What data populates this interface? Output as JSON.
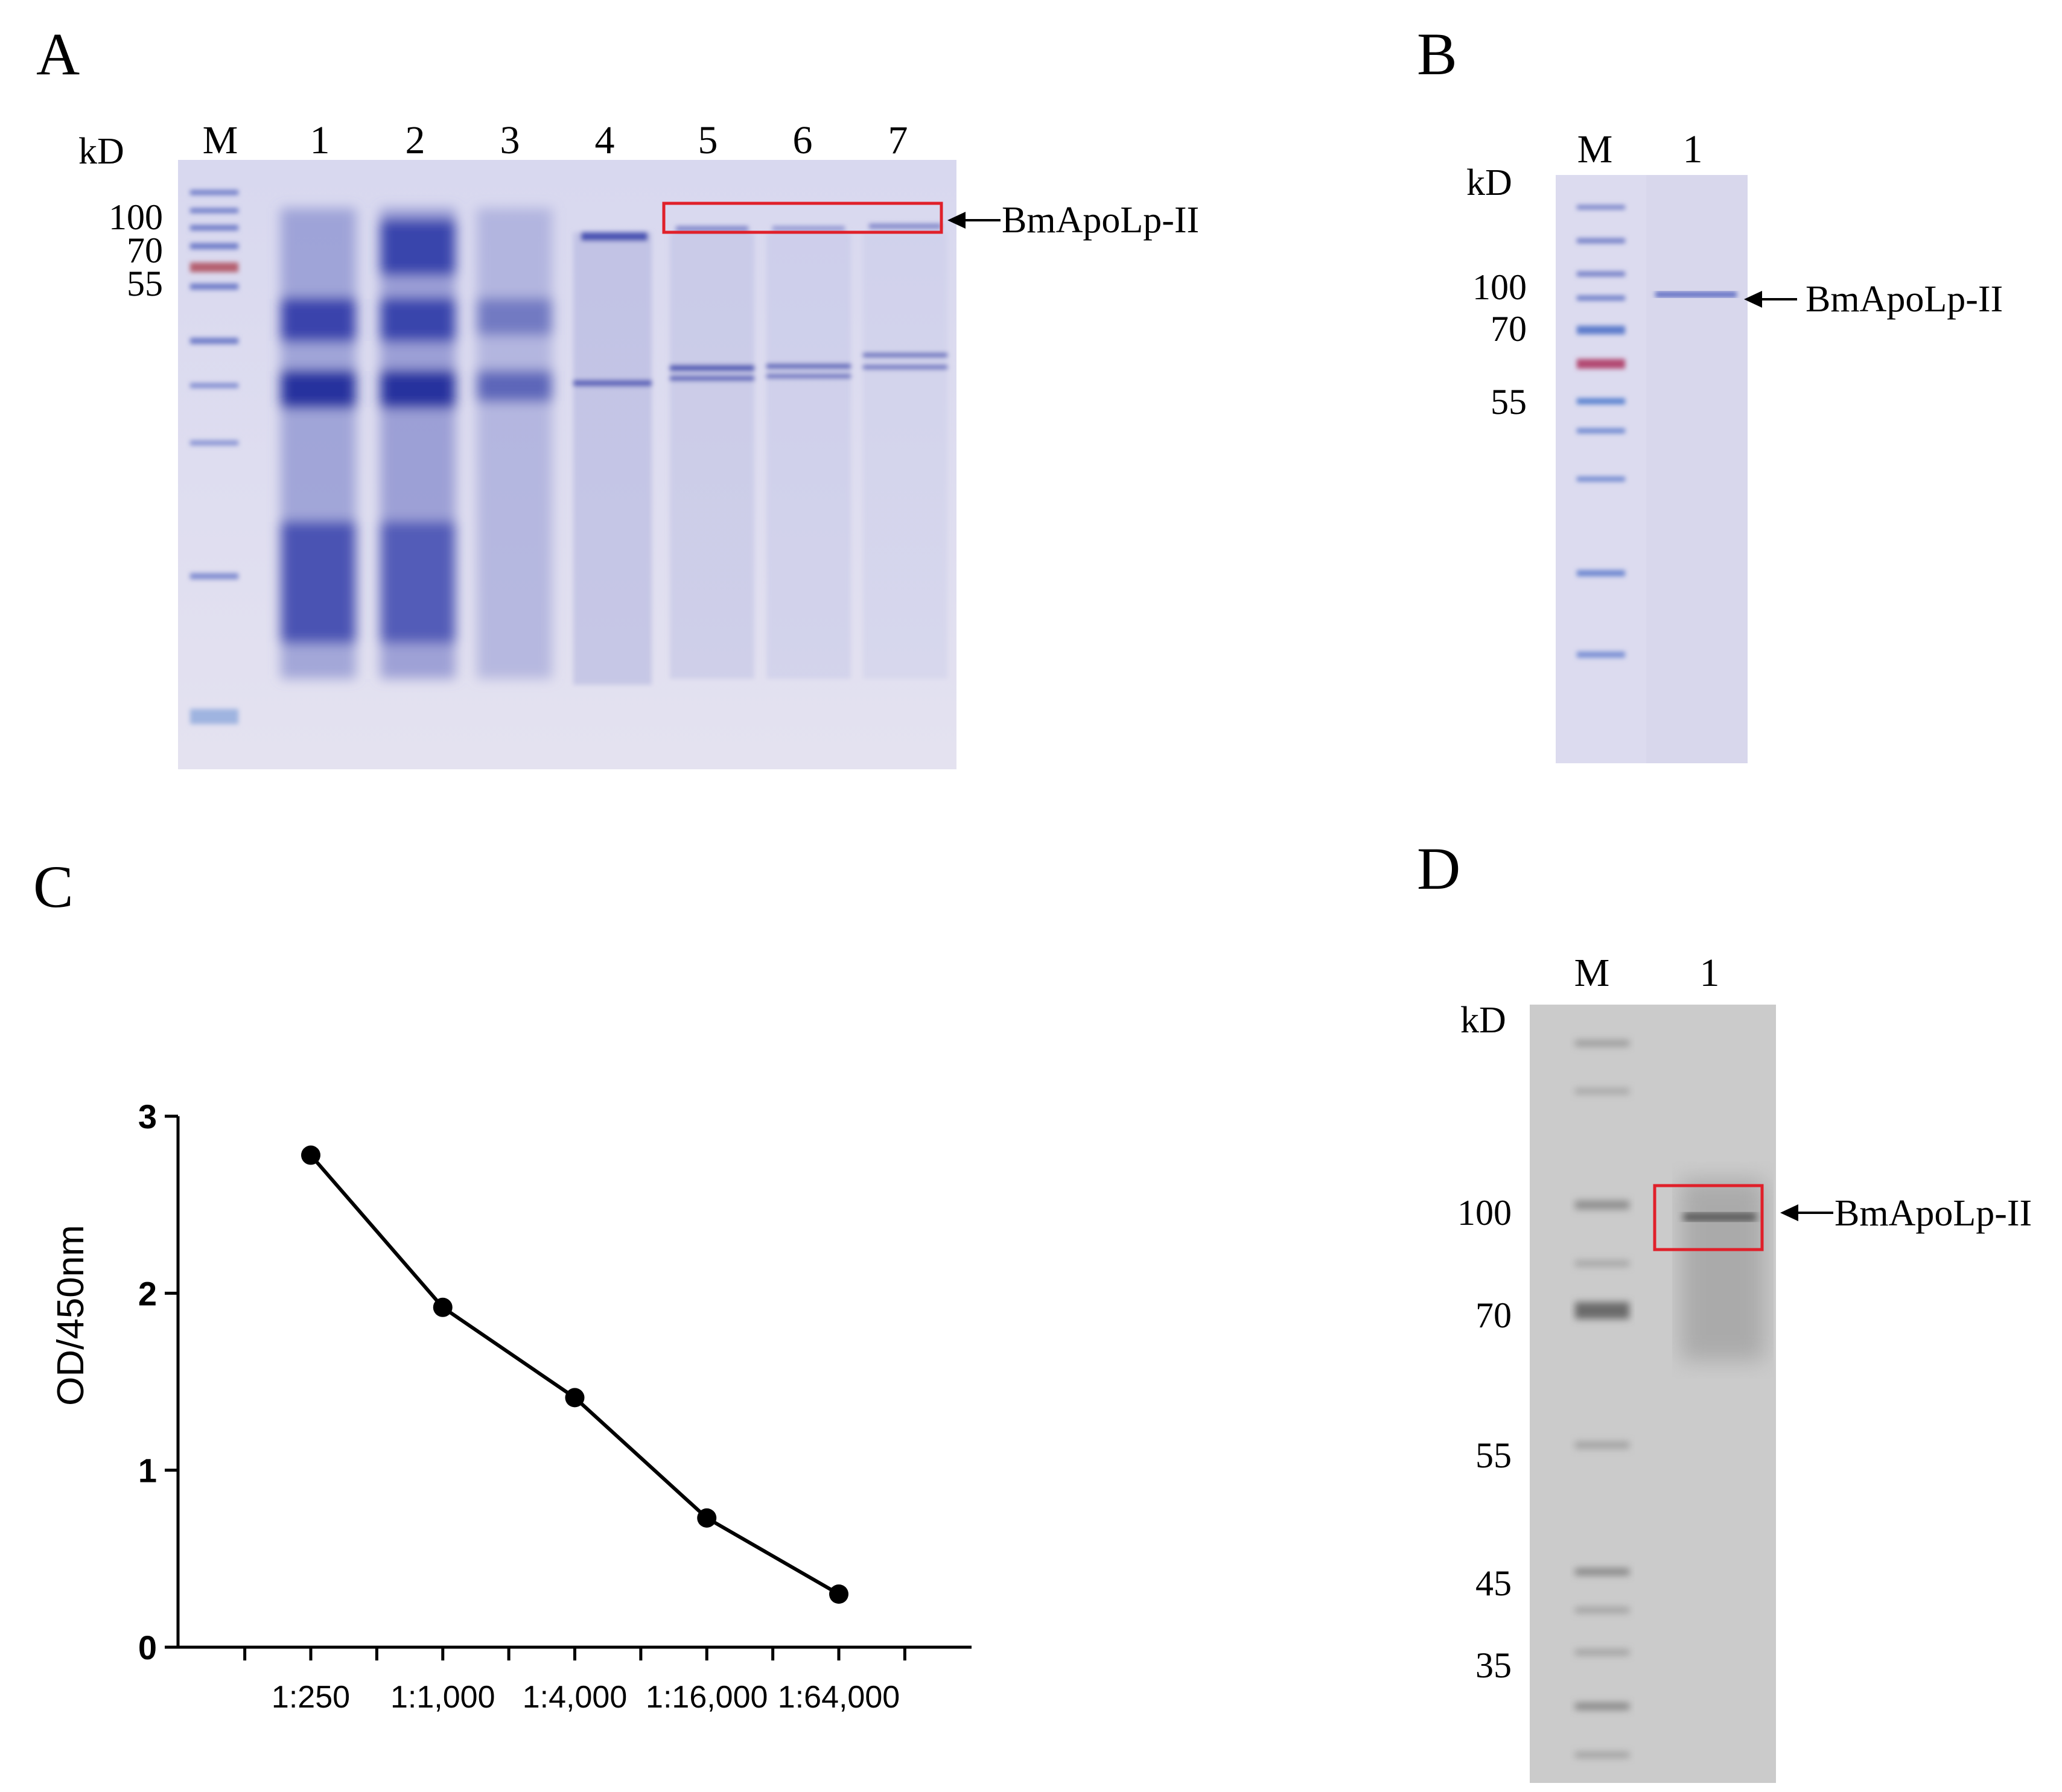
{
  "panels": {
    "A": {
      "label": "A",
      "kd_label": "kD",
      "lanes": [
        "M",
        "1",
        "2",
        "3",
        "4",
        "5",
        "6",
        "7"
      ],
      "mw_markers": [
        "100",
        "70",
        "55"
      ],
      "annotation": "BmApoLp-II"
    },
    "B": {
      "label": "B",
      "kd_label": "kD",
      "lanes": [
        "M",
        "1"
      ],
      "mw_markers": [
        "100",
        "70",
        "55"
      ],
      "annotation": "BmApoLp-II"
    },
    "C": {
      "label": "C"
    },
    "D": {
      "label": "D",
      "kd_label": "kD",
      "lanes": [
        "M",
        "1"
      ],
      "mw_markers": [
        "100",
        "70",
        "55",
        "45",
        "35"
      ],
      "annotation": "BmApoLp-II"
    }
  },
  "colors": {
    "gel_bg": "#dcdcf0",
    "coomassie": "#3a3fa8",
    "highlight_box": "#e0202a",
    "blot_bg": "#c9c9c9",
    "marker_red": "#b04a6a"
  },
  "chart_data": {
    "type": "line",
    "title": "",
    "xlabel": "",
    "ylabel": "OD/450nm",
    "categories": [
      "1:250",
      "1:1,000",
      "1:4,000",
      "1:16,000",
      "1:64,000"
    ],
    "values": [
      2.78,
      1.92,
      1.41,
      0.73,
      0.3
    ],
    "ylim": [
      0,
      3
    ],
    "yticks": [
      "0",
      "1",
      "2",
      "3"
    ],
    "grid": false,
    "legend": "none"
  }
}
